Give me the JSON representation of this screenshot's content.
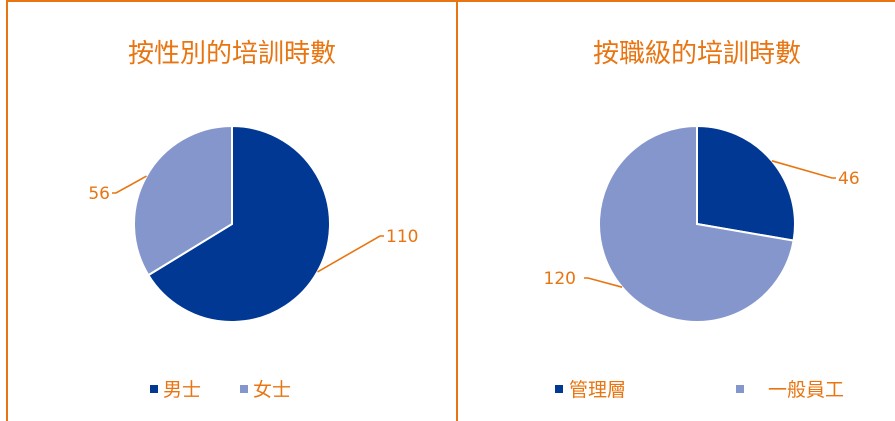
{
  "colors": {
    "border": "#E87511",
    "text": "#E87511",
    "series_dark": "#003893",
    "series_light": "#8496CC"
  },
  "chart_data": [
    {
      "type": "pie",
      "title": "按性別的培訓時數",
      "categories": [
        "男士",
        "女士"
      ],
      "values": [
        110,
        56
      ],
      "data_labels": [
        "110",
        "56"
      ],
      "colors": [
        "#003893",
        "#8496CC"
      ],
      "legend": {
        "position": "bottom",
        "entries": [
          "男士",
          "女士"
        ]
      }
    },
    {
      "type": "pie",
      "title": "按職級的培訓時數",
      "categories": [
        "管理層",
        "一般員工"
      ],
      "values": [
        46,
        120
      ],
      "data_labels": [
        "46",
        "120"
      ],
      "colors": [
        "#003893",
        "#8496CC"
      ],
      "legend": {
        "position": "bottom",
        "entries": [
          "管理層",
          "一般員工"
        ]
      }
    }
  ]
}
